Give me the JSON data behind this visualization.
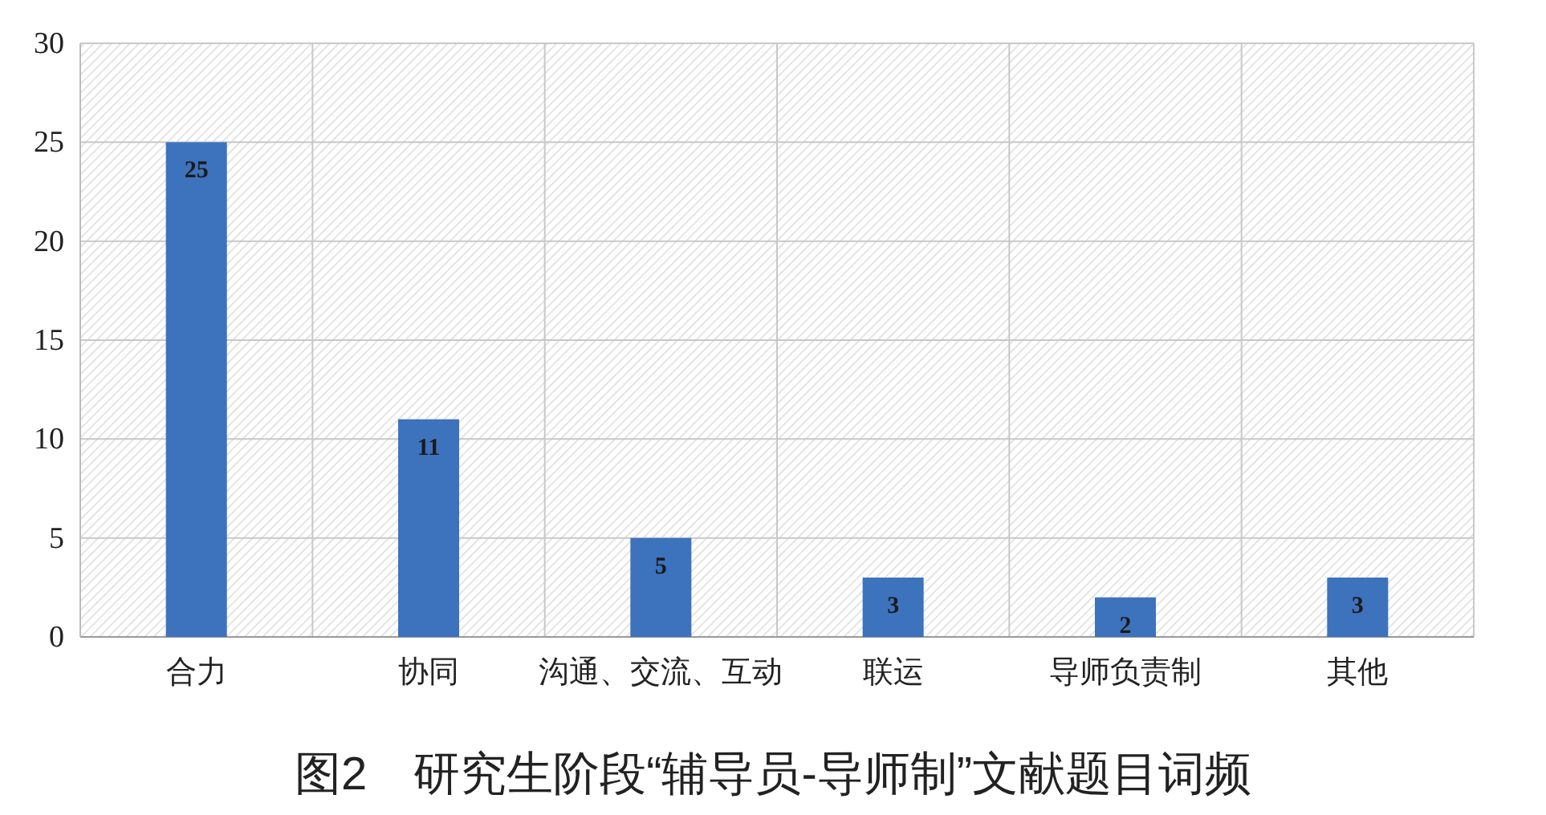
{
  "chart_data": {
    "type": "bar",
    "title": "图2　研究生阶段“辅导员-导师制”文献题目词频",
    "categories": [
      "合力",
      "协同",
      "沟通、交流、互动",
      "联运",
      "导师负责制",
      "其他"
    ],
    "values": [
      25,
      11,
      5,
      3,
      2,
      3
    ],
    "color": "#3d72bd",
    "ylim": [
      0,
      30
    ],
    "yticks": [
      0,
      5,
      10,
      15,
      20,
      25,
      30
    ],
    "grid": true,
    "data_labels": true
  }
}
